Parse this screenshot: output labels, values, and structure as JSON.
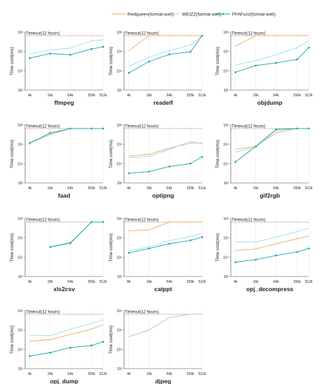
{
  "legend": [
    {
      "key": "redqueen",
      "label": "Redqueen(format-well)",
      "color": "#f0a85a",
      "marker": "none"
    },
    {
      "key": "weizz",
      "label": "WEIZZ(format-well)",
      "color": "#9fd8ee",
      "marker": "none"
    },
    {
      "key": "ffafuzz",
      "label": "FFAFuzz(format-well)",
      "color": "#1aa6a6",
      "marker": "dot"
    }
  ],
  "chart_data": [
    {
      "type": "line",
      "title": "ffmpeg",
      "ylabel": "Time cost(ms)",
      "yscale": "log",
      "ylim": [
        100,
        100000000
      ],
      "yticks": [
        "10²",
        "10⁴",
        "10⁶",
        "10⁸"
      ],
      "categories": [
        "4k",
        "16k",
        "64k",
        "256k",
        "512k"
      ],
      "timeout": {
        "label": "Timeout(12 hours)",
        "value": 43200000
      },
      "series": [
        {
          "name": "Redqueen(format-well)",
          "values": [
            null,
            null,
            null,
            null,
            null
          ]
        },
        {
          "name": "WEIZZ(format-well)",
          "values": [
            550000,
            1400000,
            2200000,
            12000000,
            16000000
          ]
        },
        {
          "name": "FFAFuzz(format-well)",
          "values": [
            200000,
            600000,
            450000,
            1800000,
            3000000
          ]
        }
      ]
    },
    {
      "type": "line",
      "title": "readelf",
      "ylabel": "Time cost(ms)",
      "yscale": "log",
      "ylim": [
        100,
        100000000
      ],
      "yticks": [
        "10²",
        "10⁴",
        "10⁶",
        "10⁸"
      ],
      "categories": [
        "4k",
        "16k",
        "64k",
        "256k",
        "512k"
      ],
      "timeout": {
        "label": "Timeout(12 hours)",
        "value": 43200000
      },
      "series": [
        {
          "name": "Redqueen(format-well)",
          "values": [
            1200000,
            43200000,
            43200000,
            43200000,
            43200000
          ]
        },
        {
          "name": "WEIZZ(format-well)",
          "values": [
            30000,
            250000,
            1200000,
            4500000,
            43200000
          ]
        },
        {
          "name": "FFAFuzz(format-well)",
          "values": [
            6000,
            90000,
            500000,
            900000,
            43200000
          ]
        }
      ]
    },
    {
      "type": "line",
      "title": "objdump",
      "ylabel": "Time cost(ms)",
      "yscale": "log",
      "ylim": [
        100,
        100000000
      ],
      "yticks": [
        "10²",
        "10⁴",
        "10⁶",
        "10⁸"
      ],
      "categories": [
        "4k",
        "16k",
        "64k",
        "256k",
        "512k"
      ],
      "timeout": {
        "label": "Timeout(12 hours)",
        "value": 43200000
      },
      "series": [
        {
          "name": "Redqueen(format-well)",
          "values": [
            3500000,
            43200000,
            43200000,
            43200000,
            43200000
          ]
        },
        {
          "name": "WEIZZ(format-well)",
          "values": [
            40000,
            110000,
            450000,
            2500000,
            13000000
          ]
        },
        {
          "name": "FFAFuzz(format-well)",
          "values": [
            7000,
            35000,
            65000,
            150000,
            2500000
          ]
        }
      ]
    },
    {
      "type": "line",
      "title": "faad",
      "ylabel": "Time cost(ms)",
      "yscale": "log",
      "ylim": [
        100,
        100000000
      ],
      "yticks": [
        "10²",
        "10⁴",
        "10⁶",
        "10⁸"
      ],
      "categories": [
        "4k",
        "16k",
        "64k",
        "256k",
        "512k"
      ],
      "timeout": {
        "label": "Timeout(12 hours)",
        "value": 43200000
      },
      "series": [
        {
          "name": "Redqueen(format-well)",
          "values": [
            1500000,
            12000000,
            43200000,
            43200000,
            43200000
          ]
        },
        {
          "name": "WEIZZ(format-well)",
          "values": [
            1300000,
            9000000,
            43200000,
            43200000,
            43200000
          ]
        },
        {
          "name": "FFAFuzz(format-well)",
          "values": [
            1300000,
            15000000,
            43200000,
            43200000,
            43200000
          ]
        }
      ]
    },
    {
      "type": "line",
      "title": "optipng",
      "ylabel": "Time cost(ms)",
      "yscale": "log",
      "ylim": [
        100,
        100000000
      ],
      "yticks": [
        "10²",
        "10⁴",
        "10⁶",
        "10⁸"
      ],
      "categories": [
        "4k",
        "16k",
        "64k",
        "256k",
        "512k"
      ],
      "timeout": {
        "label": "Timeout(12 hours)",
        "value": 43200000
      },
      "series": [
        {
          "name": "Redqueen(format-well)",
          "values": [
            60000,
            90000,
            400000,
            1300000,
            1400000
          ]
        },
        {
          "name": "WEIZZ(format-well)",
          "values": [
            40000,
            55000,
            300000,
            2000000,
            1100000
          ]
        },
        {
          "name": "FFAFuzz(format-well)",
          "values": [
            1000,
            1500,
            5000,
            10000,
            50000
          ]
        }
      ]
    },
    {
      "type": "line",
      "title": "gif2rgb",
      "ylabel": "Time cost(ms)",
      "yscale": "log",
      "ylim": [
        100,
        100000000
      ],
      "yticks": [
        "10²",
        "10⁴",
        "10⁶",
        "10⁸"
      ],
      "categories": [
        "4k",
        "16k",
        "64k",
        "256k",
        "512k"
      ],
      "timeout": {
        "label": "Timeout(12 hours)",
        "value": 43200000
      },
      "series": [
        {
          "name": "Redqueen(format-well)",
          "values": [
            300000,
            600000,
            15000000,
            43200000,
            43200000
          ]
        },
        {
          "name": "WEIZZ(format-well)",
          "values": [
            150000,
            500000,
            25000000,
            43200000,
            43200000
          ]
        },
        {
          "name": "FFAFuzz(format-well)",
          "values": [
            15000,
            600000,
            35000000,
            43200000,
            43200000
          ]
        }
      ]
    },
    {
      "type": "line",
      "title": "xls2csv",
      "ylabel": "Time cost(ms)",
      "yscale": "log",
      "ylim": [
        100,
        100000000
      ],
      "yticks": [
        "10²",
        "10⁴",
        "10⁶",
        "10⁸"
      ],
      "categories": [
        "4k",
        "16k",
        "64k",
        "256k",
        "512k"
      ],
      "timeout": {
        "label": "Timeout(12 hours)",
        "value": 43200000
      },
      "series": [
        {
          "name": "Redqueen(format-well)",
          "values": [
            null,
            120000,
            350000,
            43200000,
            43200000
          ]
        },
        {
          "name": "WEIZZ(format-well)",
          "values": [
            null,
            120000,
            350000,
            43200000,
            43200000
          ]
        },
        {
          "name": "FFAFuzz(format-well)",
          "values": [
            null,
            110000,
            280000,
            43200000,
            43200000
          ]
        }
      ]
    },
    {
      "type": "line",
      "title": "catppt",
      "ylabel": "Time cost(ms)",
      "yscale": "log",
      "ylim": [
        100,
        100000000
      ],
      "yticks": [
        "10²",
        "10⁴",
        "10⁶",
        "10⁸"
      ],
      "categories": [
        "8k",
        "16k",
        "64k",
        "256k",
        "512k"
      ],
      "timeout": {
        "label": "Timeout(12 hours)",
        "value": 43200000
      },
      "series": [
        {
          "name": "Redqueen(format-well)",
          "values": [
            5500000,
            6500000,
            43200000,
            43200000,
            43200000
          ]
        },
        {
          "name": "WEIZZ(format-well)",
          "values": [
            45000,
            120000,
            500000,
            1400000,
            3000000
          ]
        },
        {
          "name": "FFAFuzz(format-well)",
          "values": [
            28000,
            80000,
            250000,
            550000,
            1200000
          ]
        }
      ]
    },
    {
      "type": "line",
      "title": "opj_decompress",
      "ylabel": "Time cost(ms)",
      "yscale": "log",
      "ylim": [
        100,
        100000000
      ],
      "yticks": [
        "10²",
        "10⁴",
        "10⁶",
        "10⁸"
      ],
      "categories": [
        "4k",
        "16k",
        "64k",
        "256k",
        "512k"
      ],
      "timeout": {
        "label": "Timeout(12 hours)",
        "value": 43200000
      },
      "series": [
        {
          "name": "Redqueen(format-well)",
          "values": [
            50000,
            70000,
            250000,
            800000,
            1600000
          ]
        },
        {
          "name": "WEIZZ(format-well)",
          "values": [
            400000,
            350000,
            1200000,
            4500000,
            10000000
          ]
        },
        {
          "name": "FFAFuzz(format-well)",
          "values": [
            3000,
            5500,
            15000,
            35000,
            80000
          ]
        }
      ]
    },
    {
      "type": "line",
      "title": "opj_dump",
      "ylabel": "Time cost(ms)",
      "yscale": "log",
      "ylim": [
        100,
        100000000
      ],
      "yticks": [
        "10²",
        "10⁴",
        "10⁶",
        "10⁸"
      ],
      "categories": [
        "4k",
        "16k",
        "64k",
        "256k",
        "512k"
      ],
      "timeout": {
        "label": "Timeout(12 hours)",
        "value": 43200000
      },
      "series": [
        {
          "name": "Redqueen(format-well)",
          "values": [
            70000,
            100000,
            350000,
            1200000,
            3500000
          ]
        },
        {
          "name": "WEIZZ(format-well)",
          "values": [
            300000,
            250000,
            1200000,
            4500000,
            12000000
          ]
        },
        {
          "name": "FFAFuzz(format-well)",
          "values": [
            2000,
            4500,
            15000,
            25000,
            60000
          ]
        }
      ]
    },
    {
      "type": "line",
      "title": "djpeg",
      "ylabel": "Time cost(ms)",
      "yscale": "log",
      "ylim": [
        100,
        100000000
      ],
      "yticks": [
        "10²",
        "10⁴",
        "10⁶",
        "10⁸"
      ],
      "categories": [
        "4k",
        "16k",
        "64k",
        "256k",
        "512k"
      ],
      "timeout": {
        "label": "Timeout(12 hours)",
        "value": 43200000
      },
      "series": [
        {
          "name": "Redqueen(format-well)",
          "values": [
            200000,
            1000000,
            20000000,
            43200000,
            43200000
          ]
        },
        {
          "name": "WEIZZ(format-well)",
          "values": [
            200000,
            1000000,
            20000000,
            43200000,
            43200000
          ]
        },
        {
          "name": "FFAFuzz(format-well)",
          "values": [
            null,
            null,
            null,
            null,
            null
          ]
        }
      ]
    }
  ]
}
